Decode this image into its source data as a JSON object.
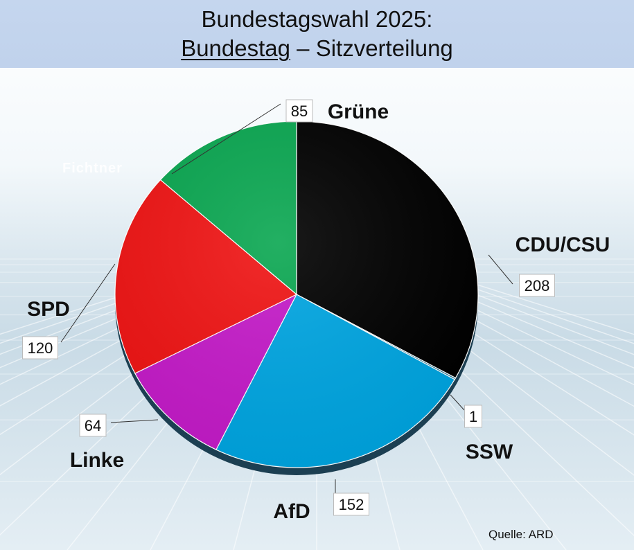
{
  "header": {
    "title_line1": "Bundestagswahl 2025:",
    "title_part_underlined": "Bundestag",
    "title_part_rest": " – Sitzverteilung"
  },
  "watermark": "Fichtner",
  "source": "Quelle: ARD",
  "chart_data": {
    "type": "pie",
    "title": "Bundestagswahl 2025: Bundestag – Sitzverteilung",
    "start": "12 o'clock",
    "direction": "clockwise",
    "slices": [
      {
        "label": "CDU/CSU",
        "value": 208,
        "color": "#000000"
      },
      {
        "label": "SSW",
        "value": 1,
        "color": "#1a6e8c"
      },
      {
        "label": "AfD",
        "value": 152,
        "color": "#00a6e2"
      },
      {
        "label": "Linke",
        "value": 64,
        "color": "#c51bc9"
      },
      {
        "label": "SPD",
        "value": 120,
        "color": "#f01414"
      },
      {
        "label": "Grüne",
        "value": 85,
        "color": "#0aa751"
      }
    ]
  }
}
